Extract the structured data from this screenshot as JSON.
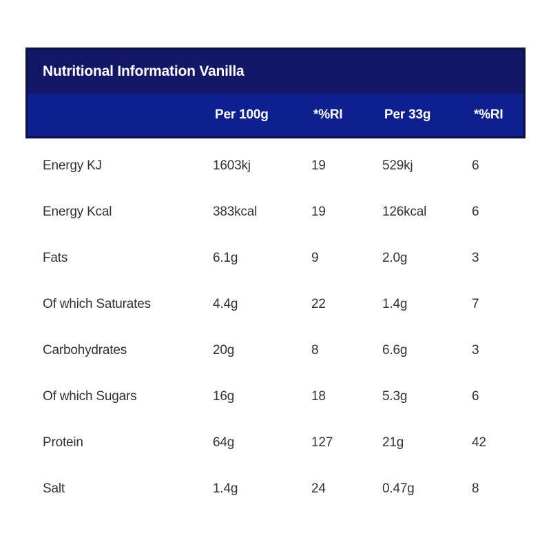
{
  "table": {
    "title": "Nutritional Information Vanilla",
    "columns": {
      "per100": "Per 100g",
      "ri100": "*%RI",
      "per33": "Per 33g",
      "ri33": "*%RI"
    },
    "rows": [
      {
        "label": "Energy KJ",
        "per100": "1603kj",
        "ri100": "19",
        "per33": "529kj",
        "ri33": "6"
      },
      {
        "label": "Energy Kcal",
        "per100": "383kcal",
        "ri100": "19",
        "per33": "126kcal",
        "ri33": "6"
      },
      {
        "label": "Fats",
        "per100": "6.1g",
        "ri100": "9",
        "per33": "2.0g",
        "ri33": "3"
      },
      {
        "label": "Of which Saturates",
        "per100": "4.4g",
        "ri100": "22",
        "per33": "1.4g",
        "ri33": "7"
      },
      {
        "label": "Carbohydrates",
        "per100": "20g",
        "ri100": "8",
        "per33": "6.6g",
        "ri33": "3"
      },
      {
        "label": "Of which Sugars",
        "per100": "16g",
        "ri100": "18",
        "per33": "5.3g",
        "ri33": "6"
      },
      {
        "label": "Protein",
        "per100": "64g",
        "ri100": "127",
        "per33": "21g",
        "ri33": "42"
      },
      {
        "label": "Salt",
        "per100": "1.4g",
        "ri100": "24",
        "per33": "0.47g",
        "ri33": "8"
      }
    ]
  },
  "colors": {
    "titleBg": "#121866",
    "headerBg": "#0e2090",
    "headerBorder": "#0c103c",
    "headerText": "#ffffff",
    "bodyText": "#31313b",
    "pageBg": "#ffffff"
  }
}
